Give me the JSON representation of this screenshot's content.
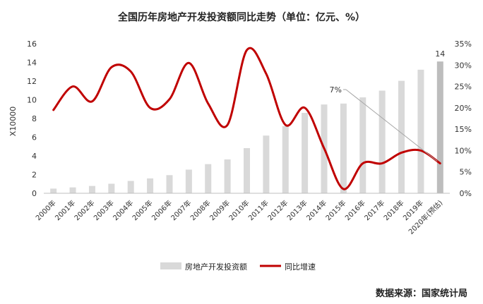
{
  "chart_data": {
    "type": "bar+line",
    "title": "全国历年房地产开发投资额同比走势（单位：亿元、%）",
    "source": "数据来源：国家统计局",
    "ylabel_left": "X10000",
    "categories": [
      "2000年",
      "2001年",
      "2002年",
      "2003年",
      "2004年",
      "2005年",
      "2006年",
      "2007年",
      "2008年",
      "2009年",
      "2010年",
      "2011年",
      "2012年",
      "2013年",
      "2014年",
      "2015年",
      "2016年",
      "2017年",
      "2018年",
      "2019年",
      "2020年(预估)"
    ],
    "left_axis": {
      "ylim": [
        0,
        16
      ],
      "ticks": [
        "0",
        "2",
        "4",
        "6",
        "8",
        "10",
        "12",
        "14",
        "16"
      ]
    },
    "right_axis": {
      "ylim": [
        0,
        35
      ],
      "ticks": [
        "0%",
        "5%",
        "10%",
        "15%",
        "20%",
        "25%",
        "30%",
        "35%"
      ]
    },
    "series": [
      {
        "name": "房地产开发投资额",
        "type": "bar",
        "axis": "left",
        "values": [
          0.5,
          0.63,
          0.78,
          1.02,
          1.32,
          1.59,
          1.94,
          2.53,
          3.12,
          3.62,
          4.83,
          6.17,
          7.18,
          8.6,
          9.5,
          9.6,
          10.26,
          10.98,
          12.03,
          13.22,
          14.1
        ]
      },
      {
        "name": "同比增速",
        "type": "line",
        "axis": "right",
        "values": [
          19.5,
          25.0,
          21.5,
          29.5,
          28.5,
          20.0,
          22.0,
          30.5,
          21.0,
          16.0,
          33.5,
          28.0,
          16.0,
          20.0,
          10.5,
          1.0,
          7.0,
          7.0,
          9.5,
          10.0,
          7.0
        ]
      }
    ],
    "annotations": [
      {
        "label": "14",
        "target": "2020年(预估)"
      },
      {
        "label": "7%",
        "target": "2020年(预估)"
      }
    ]
  },
  "colors": {
    "bar": "#d9d9d9",
    "bar_highlight": "#bdbdbd",
    "line": "#c00000",
    "annotation_line": "#a6a6a6"
  }
}
